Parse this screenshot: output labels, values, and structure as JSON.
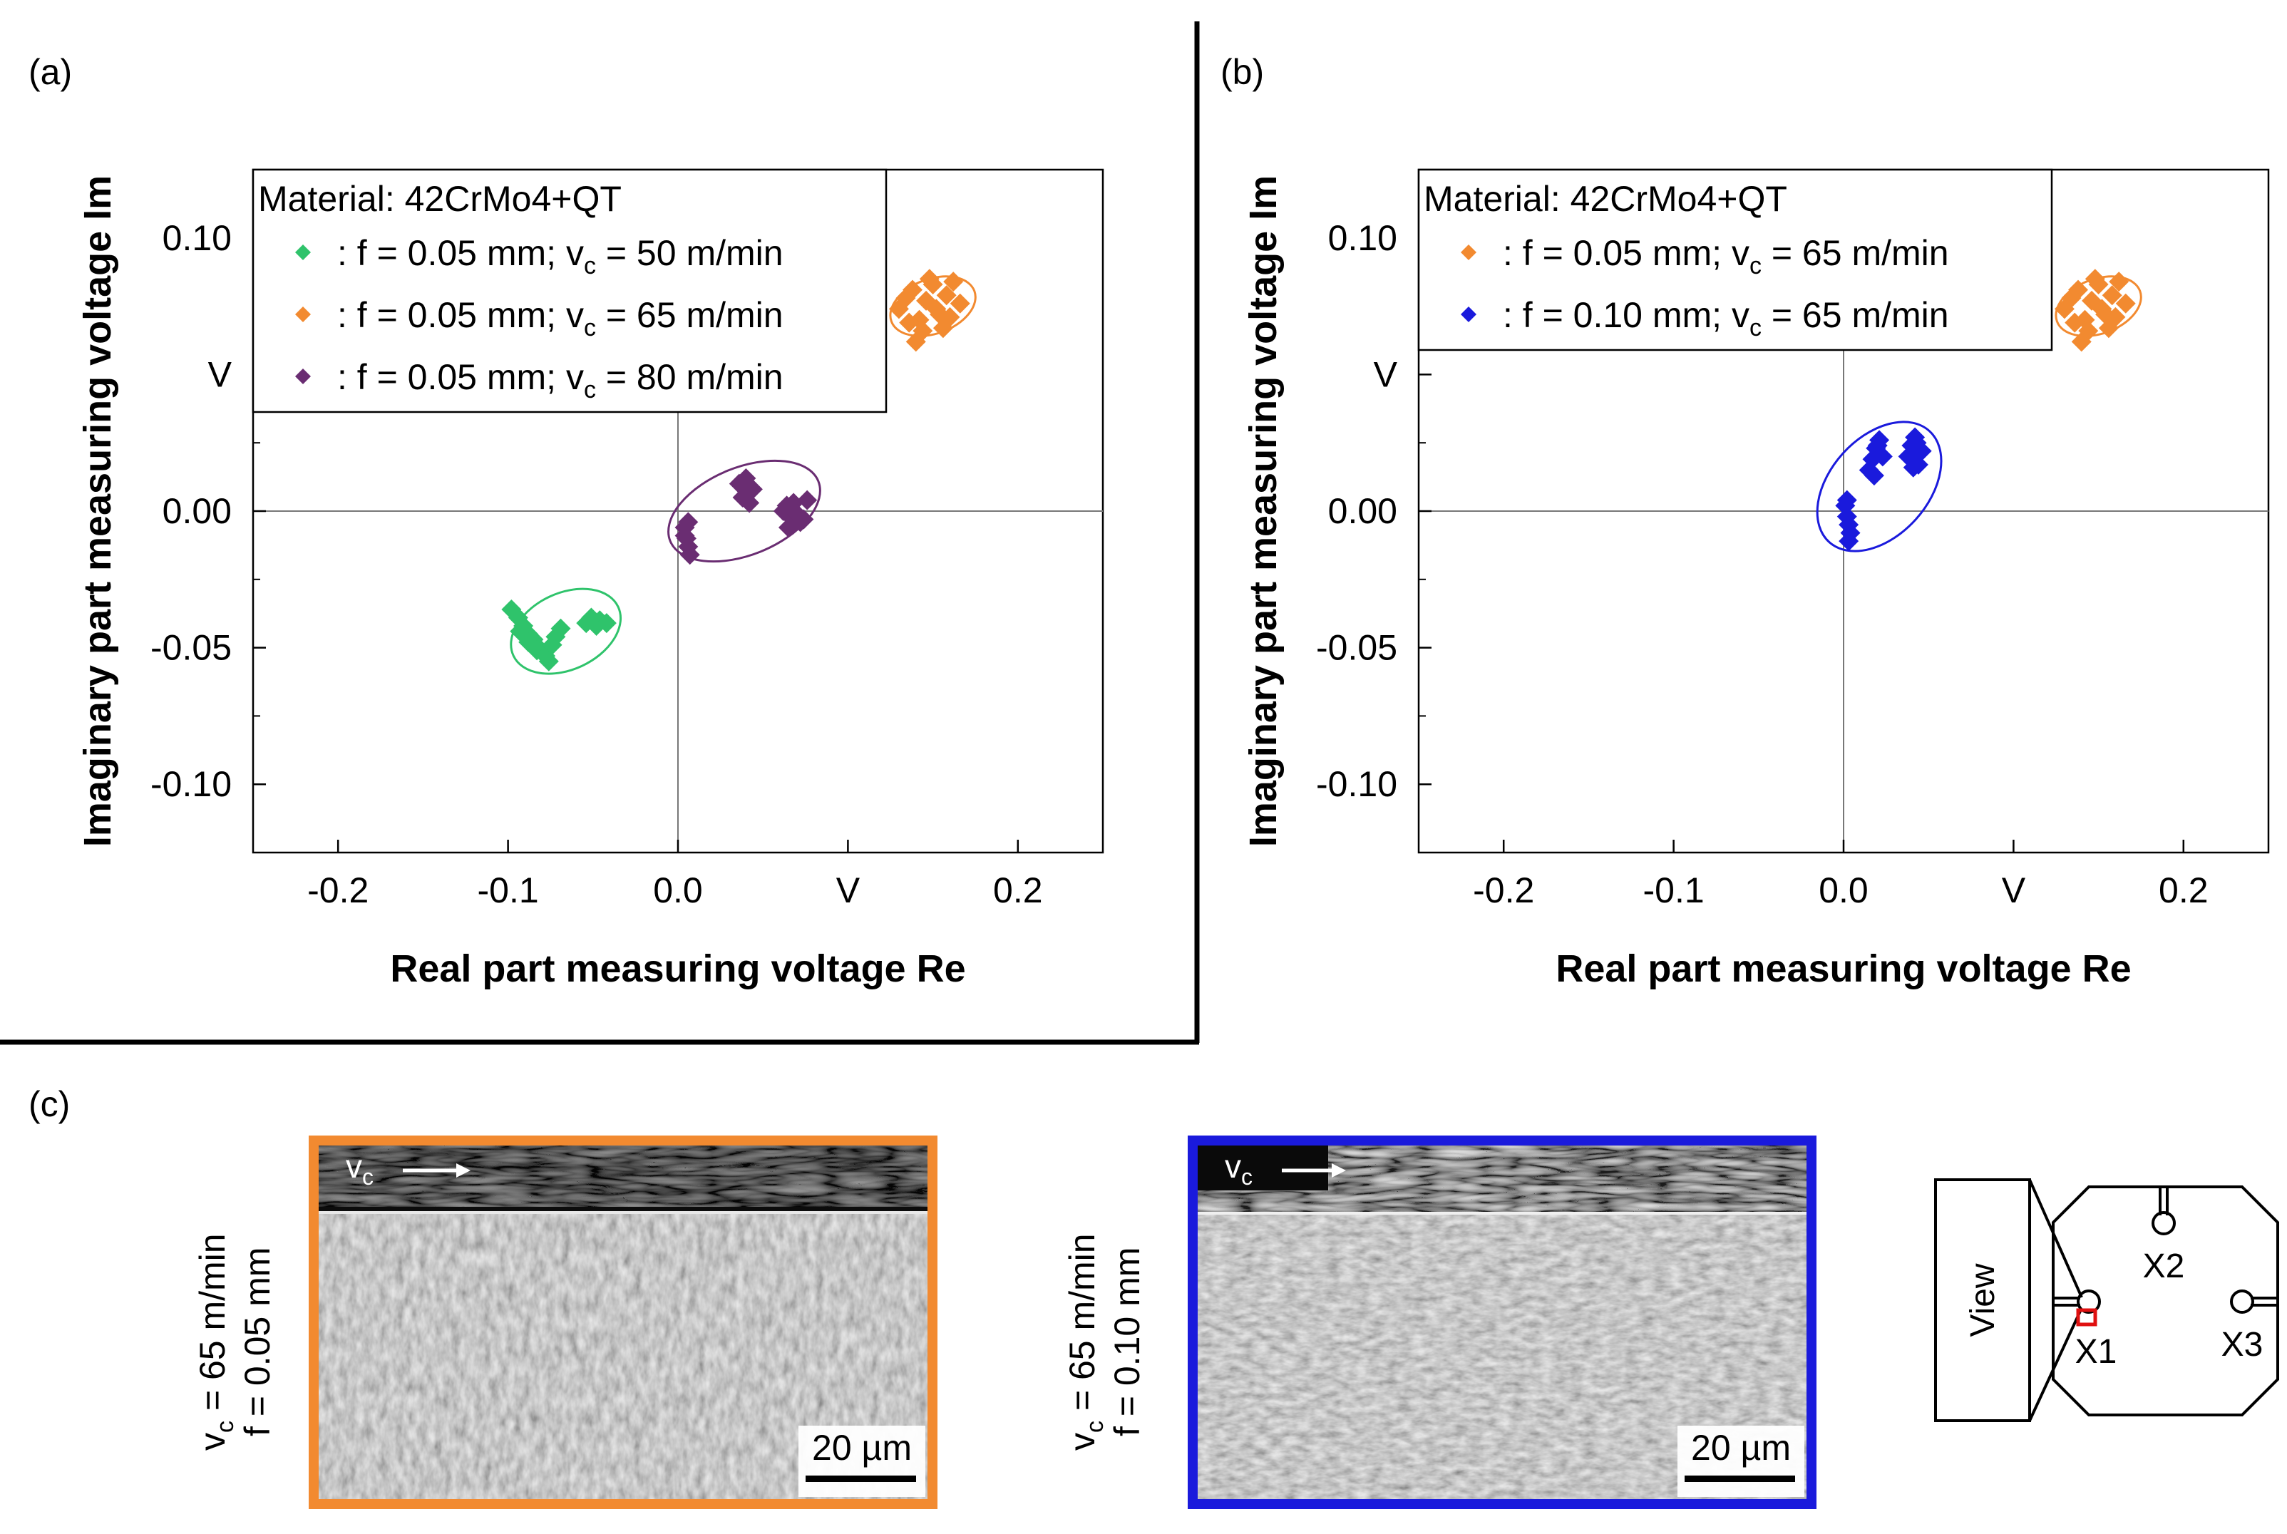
{
  "panel_labels": {
    "a": "(a)",
    "b": "(b)",
    "c": "(c)"
  },
  "chart_data": [
    {
      "id": "a",
      "type": "scatter",
      "title": "",
      "xlabel": "Real part measuring voltage Re",
      "ylabel": "Imaginary part measuring voltage Im",
      "xlim": [
        -0.25,
        0.25
      ],
      "ylim": [
        -0.125,
        0.125
      ],
      "x_ticks": [
        {
          "value": -0.2,
          "label": "-0.2"
        },
        {
          "value": -0.1,
          "label": "-0.1"
        },
        {
          "value": 0.0,
          "label": "0.0"
        },
        {
          "value": 0.1,
          "label": "V"
        },
        {
          "value": 0.2,
          "label": "0.2"
        }
      ],
      "y_ticks": [
        {
          "value": 0.1,
          "label": "0.10"
        },
        {
          "value": 0.05,
          "label": "V"
        },
        {
          "value": 0.0,
          "label": "0.00"
        },
        {
          "value": -0.05,
          "label": "-0.05"
        },
        {
          "value": -0.1,
          "label": "-0.10"
        }
      ],
      "legend": {
        "position": "top-left",
        "title": "Material: 42CrMo4+QT",
        "entries": [
          {
            "color": "#2fc36b",
            "pre": ": f = 0.05 mm; v",
            "sub": "c",
            "post": " = 50 m/min"
          },
          {
            "color": "#f28a30",
            "pre": ": f = 0.05 mm; v",
            "sub": "c",
            "post": " = 65 m/min"
          },
          {
            "color": "#6a2d72",
            "pre": ": f = 0.05 mm; v",
            "sub": "c",
            "post": " = 80 m/min"
          }
        ]
      },
      "series": [
        {
          "name": "f = 0.05 mm; vc = 50 m/min",
          "color": "#2fc36b",
          "x": [
            -0.098,
            -0.094,
            -0.091,
            -0.088,
            -0.085,
            -0.082,
            -0.079,
            -0.076,
            -0.093,
            -0.088,
            -0.083,
            -0.078,
            -0.074,
            -0.072,
            -0.069,
            -0.054,
            -0.051,
            -0.048,
            -0.046,
            -0.042
          ],
          "y": [
            -0.036,
            -0.039,
            -0.042,
            -0.045,
            -0.047,
            -0.05,
            -0.052,
            -0.055,
            -0.044,
            -0.048,
            -0.051,
            -0.053,
            -0.049,
            -0.046,
            -0.043,
            -0.041,
            -0.039,
            -0.042,
            -0.04,
            -0.041
          ],
          "ellipse": {
            "cx": -0.066,
            "cy": -0.044,
            "rx": 0.034,
            "ry": 0.014,
            "angle_deg": 25
          }
        },
        {
          "name": "f = 0.05 mm; vc = 65 m/min",
          "color": "#f28a30",
          "x": [
            0.13,
            0.134,
            0.138,
            0.142,
            0.146,
            0.15,
            0.154,
            0.158,
            0.162,
            0.166,
            0.136,
            0.144,
            0.152,
            0.16,
            0.148,
            0.156,
            0.14
          ],
          "y": [
            0.074,
            0.078,
            0.081,
            0.07,
            0.077,
            0.083,
            0.072,
            0.079,
            0.084,
            0.076,
            0.069,
            0.066,
            0.074,
            0.071,
            0.085,
            0.067,
            0.062
          ],
          "ellipse": {
            "cx": 0.15,
            "cy": 0.075,
            "rx": 0.026,
            "ry": 0.01,
            "angle_deg": 20
          }
        },
        {
          "name": "f = 0.05 mm; vc = 80 m/min",
          "color": "#6a2d72",
          "x": [
            0.004,
            0.005,
            0.006,
            0.007,
            0.004,
            0.006,
            0.036,
            0.038,
            0.04,
            0.042,
            0.044,
            0.062,
            0.064,
            0.066,
            0.068,
            0.07,
            0.072,
            0.074,
            0.076,
            0.065
          ],
          "y": [
            -0.006,
            -0.01,
            -0.013,
            -0.016,
            -0.009,
            -0.004,
            0.01,
            0.005,
            0.012,
            0.003,
            0.008,
            0.0,
            0.002,
            -0.002,
            0.003,
            -0.001,
            -0.004,
            -0.003,
            0.004,
            -0.006
          ],
          "ellipse": {
            "cx": 0.039,
            "cy": 0.0,
            "rx": 0.047,
            "ry": 0.016,
            "angle_deg": 22
          }
        }
      ]
    },
    {
      "id": "b",
      "type": "scatter",
      "title": "",
      "xlabel": "Real part measuring voltage Re",
      "ylabel": "Imaginary part measuring voltage Im",
      "xlim": [
        -0.25,
        0.25
      ],
      "ylim": [
        -0.125,
        0.125
      ],
      "x_ticks": [
        {
          "value": -0.2,
          "label": "-0.2"
        },
        {
          "value": -0.1,
          "label": "-0.1"
        },
        {
          "value": 0.0,
          "label": "0.0"
        },
        {
          "value": 0.1,
          "label": "V"
        },
        {
          "value": 0.2,
          "label": "0.2"
        }
      ],
      "y_ticks": [
        {
          "value": 0.1,
          "label": "0.10"
        },
        {
          "value": 0.05,
          "label": "V"
        },
        {
          "value": 0.0,
          "label": "0.00"
        },
        {
          "value": -0.05,
          "label": "-0.05"
        },
        {
          "value": -0.1,
          "label": "-0.10"
        }
      ],
      "legend": {
        "position": "top-left",
        "title": "Material: 42CrMo4+QT",
        "entries": [
          {
            "color": "#f28a30",
            "pre": ": f = 0.05 mm; v",
            "sub": "c",
            "post": " = 65 m/min"
          },
          {
            "color": "#1a1adc",
            "pre": ": f = 0.10 mm; v",
            "sub": "c",
            "post": " = 65 m/min"
          }
        ]
      },
      "series": [
        {
          "name": "f = 0.05 mm; vc = 65 m/min",
          "color": "#f28a30",
          "x": [
            0.13,
            0.134,
            0.138,
            0.142,
            0.146,
            0.15,
            0.154,
            0.158,
            0.162,
            0.166,
            0.136,
            0.144,
            0.152,
            0.16,
            0.148,
            0.156,
            0.14
          ],
          "y": [
            0.074,
            0.078,
            0.081,
            0.07,
            0.077,
            0.083,
            0.072,
            0.079,
            0.084,
            0.076,
            0.069,
            0.066,
            0.074,
            0.071,
            0.085,
            0.067,
            0.062
          ],
          "ellipse": {
            "cx": 0.15,
            "cy": 0.075,
            "rx": 0.026,
            "ry": 0.01,
            "angle_deg": 20
          }
        },
        {
          "name": "f = 0.10 mm; vc = 65 m/min",
          "color": "#1a1adc",
          "x": [
            0.001,
            0.002,
            0.003,
            0.004,
            0.002,
            0.003,
            0.015,
            0.017,
            0.019,
            0.021,
            0.023,
            0.018,
            0.02,
            0.038,
            0.04,
            0.042,
            0.044,
            0.046,
            0.041,
            0.043
          ],
          "y": [
            0.002,
            -0.002,
            -0.005,
            -0.008,
            0.004,
            -0.011,
            0.015,
            0.019,
            0.023,
            0.026,
            0.02,
            0.013,
            0.024,
            0.02,
            0.024,
            0.027,
            0.017,
            0.022,
            0.016,
            0.025
          ],
          "ellipse": {
            "cx": 0.021,
            "cy": 0.009,
            "rx": 0.044,
            "ry": 0.018,
            "angle_deg": 48
          }
        }
      ]
    }
  ],
  "micrographs": [
    {
      "id": "left",
      "side_label_top": "v",
      "side_label_top_sub": "c",
      "side_label_top_rest": " = 65 m/min",
      "side_label_bottom": "f = 0.05 mm",
      "arrow_label": "v",
      "arrow_sub": "c",
      "scale_label": "20 µm",
      "frame_color": "#f28a30"
    },
    {
      "id": "right",
      "side_label_top": "v",
      "side_label_top_sub": "c",
      "side_label_top_rest": " = 65 m/min",
      "side_label_bottom": "f = 0.10 mm",
      "arrow_label": "v",
      "arrow_sub": "c",
      "scale_label": "20 µm",
      "frame_color": "#1a1adc"
    }
  ],
  "schematic": {
    "view_label": "View",
    "positions": [
      "X1",
      "X2",
      "X3"
    ],
    "marker_color": "#e01010"
  }
}
